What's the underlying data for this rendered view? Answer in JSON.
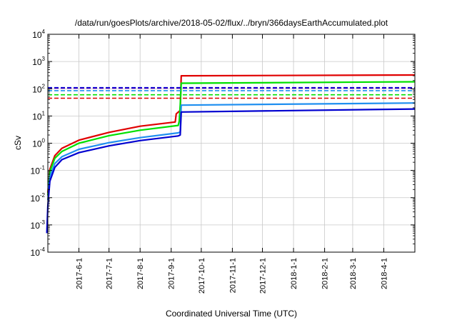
{
  "chart_data": {
    "type": "line",
    "title": "/data/run/goesPlots/archive/2018-05-02/flux/../bryn/366daysEarthAccumulated.plot",
    "xlabel": "Coordinated Universal Time (UTC)",
    "ylabel": "cSv",
    "yscale": "log",
    "xlim": [
      "2017-05-01",
      "2018-05-02"
    ],
    "ylim": [
      0.0001,
      10000
    ],
    "yticks": [
      {
        "base": "10",
        "exp": "-4",
        "value": 0.0001
      },
      {
        "base": "10",
        "exp": "-3",
        "value": 0.001
      },
      {
        "base": "10",
        "exp": "-2",
        "value": 0.01
      },
      {
        "base": "10",
        "exp": "-1",
        "value": 0.1
      },
      {
        "base": "10",
        "exp": "0",
        "value": 1
      },
      {
        "base": "10",
        "exp": "1",
        "value": 10
      },
      {
        "base": "10",
        "exp": "2",
        "value": 100
      },
      {
        "base": "10",
        "exp": "3",
        "value": 1000
      },
      {
        "base": "10",
        "exp": "4",
        "value": 10000
      }
    ],
    "xticks": [
      {
        "label": "2017-6-1",
        "date": "2017-06-01"
      },
      {
        "label": "2017-7-1",
        "date": "2017-07-01"
      },
      {
        "label": "2017-8-1",
        "date": "2017-08-01"
      },
      {
        "label": "2017-9-1",
        "date": "2017-09-01"
      },
      {
        "label": "2017-10-1",
        "date": "2017-10-01"
      },
      {
        "label": "2017-11-1",
        "date": "2017-11-01"
      },
      {
        "label": "2017-12-1",
        "date": "2017-12-01"
      },
      {
        "label": "2018-1-1",
        "date": "2018-01-01"
      },
      {
        "label": "2018-2-1",
        "date": "2018-02-01"
      },
      {
        "label": "2018-3-1",
        "date": "2018-03-01"
      },
      {
        "label": "2018-4-1",
        "date": "2018-04-01"
      }
    ],
    "grid": true,
    "series": [
      {
        "color": "#e00000",
        "style": "solid",
        "x": [
          "2017-05-01",
          "2017-05-03",
          "2017-05-08",
          "2017-05-15",
          "2017-06-01",
          "2017-07-01",
          "2017-08-01",
          "2017-09-05",
          "2017-09-06",
          "2017-09-10",
          "2017-09-11",
          "2018-05-02"
        ],
        "y": [
          0.015,
          0.11,
          0.35,
          0.65,
          1.3,
          2.5,
          4.2,
          6,
          12,
          16,
          300,
          320
        ]
      },
      {
        "color": "#00e000",
        "style": "solid",
        "x": [
          "2017-05-01",
          "2017-05-03",
          "2017-05-08",
          "2017-05-15",
          "2017-06-01",
          "2017-07-01",
          "2017-08-01",
          "2017-09-08",
          "2017-09-09",
          "2017-09-10",
          "2017-09-11",
          "2018-05-02"
        ],
        "y": [
          0.012,
          0.09,
          0.28,
          0.5,
          1,
          1.9,
          3,
          4.5,
          6.5,
          25,
          160,
          180
        ]
      },
      {
        "color": "#1f8ff0",
        "style": "solid",
        "x": [
          "2017-05-01",
          "2017-05-03",
          "2017-05-08",
          "2017-05-15",
          "2017-06-01",
          "2017-07-01",
          "2017-08-01",
          "2017-09-08",
          "2017-09-10",
          "2017-09-11",
          "2018-05-02"
        ],
        "y": [
          0.008,
          0.06,
          0.18,
          0.32,
          0.6,
          1.05,
          1.6,
          2.4,
          2.6,
          25,
          30
        ]
      },
      {
        "color": "#0000d0",
        "style": "solid",
        "x": [
          "2017-04-30",
          "2017-05-01",
          "2017-05-03",
          "2017-05-08",
          "2017-05-15",
          "2017-06-01",
          "2017-07-01",
          "2017-08-01",
          "2017-09-08",
          "2017-09-10",
          "2017-09-11",
          "2018-05-02"
        ],
        "y": [
          0.0005,
          0.005,
          0.04,
          0.13,
          0.25,
          0.45,
          0.8,
          1.25,
          1.85,
          2,
          14,
          18
        ]
      },
      {
        "color": "#e00000",
        "style": "dashed",
        "x": [
          "2017-05-01",
          "2018-05-02"
        ],
        "y": [
          45,
          45
        ]
      },
      {
        "color": "#00e000",
        "style": "dashed",
        "x": [
          "2017-05-01",
          "2018-05-02"
        ],
        "y": [
          60,
          60
        ]
      },
      {
        "color": "#1f8ff0",
        "style": "dashed",
        "x": [
          "2017-05-01",
          "2018-05-02"
        ],
        "y": [
          85,
          85
        ]
      },
      {
        "color": "#7000c0",
        "style": "dashed",
        "x": [
          "2017-05-01",
          "2018-05-02"
        ],
        "y": [
          105,
          105
        ]
      },
      {
        "color": "#0000d0",
        "style": "dashed",
        "x": [
          "2017-05-01",
          "2018-05-02"
        ],
        "y": [
          110,
          110
        ]
      }
    ]
  }
}
